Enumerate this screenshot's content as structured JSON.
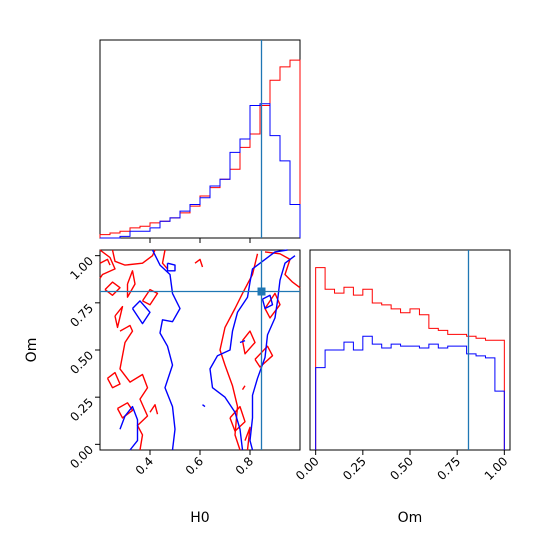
{
  "chart_data": [
    {
      "type": "histogram",
      "panel": "H0 marginal (top-left)",
      "x_range": [
        0.2,
        1.0
      ],
      "bin_edges": [
        0.2,
        0.24,
        0.28,
        0.32,
        0.36,
        0.4,
        0.44,
        0.48,
        0.52,
        0.56,
        0.6,
        0.64,
        0.68,
        0.72,
        0.76,
        0.8,
        0.84,
        0.88,
        0.92,
        0.96,
        1.0
      ],
      "series": [
        {
          "color": "#ff0000",
          "counts": [
            2,
            3,
            4,
            6,
            7,
            9,
            10,
            12,
            15,
            19,
            25,
            30,
            35,
            41,
            54,
            62,
            79,
            94,
            102,
            106
          ]
        },
        {
          "color": "#0000ff",
          "counts": [
            0,
            0,
            1,
            4,
            4,
            6,
            10,
            12,
            16,
            20,
            24,
            31,
            35,
            51,
            59,
            79,
            80,
            61,
            46,
            20
          ]
        }
      ],
      "truth_line": {
        "x": 0.846,
        "color": "#1f77b4"
      }
    },
    {
      "type": "contour",
      "panel": "H0 vs Om joint (bottom-left)",
      "xlabel": "H0",
      "ylabel": "Om",
      "x_range": [
        0.2,
        1.0
      ],
      "y_range": [
        -0.03,
        1.03
      ],
      "xticks": [
        "0.4",
        "0.6",
        "0.8"
      ],
      "yticks": [
        "0.00",
        "0.25",
        "0.50",
        "0.75",
        "1.00"
      ],
      "series": [
        {
          "name": "red contours",
          "color": "#ff0000"
        },
        {
          "name": "blue contours",
          "color": "#0000ff"
        }
      ],
      "truth_point": {
        "x": 0.846,
        "y": 0.81,
        "color": "#1f77b4"
      }
    },
    {
      "type": "histogram",
      "panel": "Om marginal (bottom-right)",
      "xlabel": "Om",
      "x_range": [
        -0.03,
        1.03
      ],
      "xticks": [
        "0.00",
        "0.25",
        "0.50",
        "0.75",
        "1.00"
      ],
      "bin_edges": [
        0.0,
        0.05,
        0.1,
        0.15,
        0.2,
        0.25,
        0.3,
        0.35,
        0.4,
        0.45,
        0.5,
        0.55,
        0.6,
        0.65,
        0.7,
        0.75,
        0.8,
        0.85,
        0.9,
        0.95,
        1.0
      ],
      "series": [
        {
          "color": "#ff0000",
          "counts": [
            93,
            82,
            80,
            83,
            79,
            82,
            75,
            74,
            72,
            70,
            72,
            69,
            62,
            61,
            59,
            59,
            58,
            57,
            56,
            56
          ]
        },
        {
          "color": "#0000ff",
          "counts": [
            42,
            51,
            51,
            55,
            51,
            58,
            54,
            52,
            54,
            53,
            53,
            52,
            54,
            52,
            53,
            53,
            49,
            48,
            47,
            30
          ]
        }
      ],
      "truth_line": {
        "x": 0.81,
        "color": "#1f77b4"
      }
    }
  ]
}
